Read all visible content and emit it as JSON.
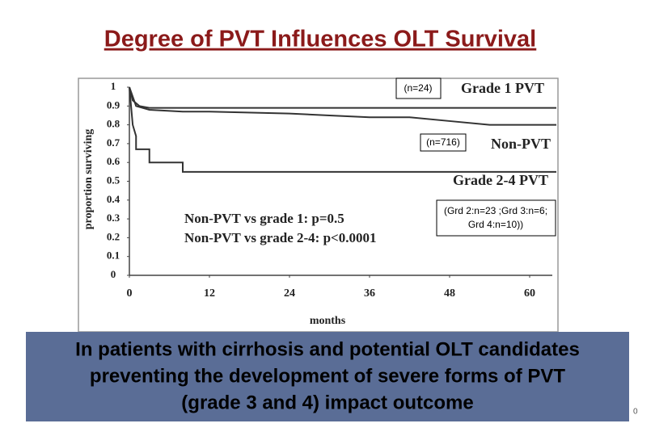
{
  "title": "Degree of PVT Influences OLT Survival",
  "chart_data": {
    "type": "line",
    "step": true,
    "ylabel": "proportion surviving",
    "xlabel": "months",
    "xlim": [
      0,
      64
    ],
    "xticks": [
      0,
      12,
      24,
      36,
      48,
      60
    ],
    "ylim": [
      0,
      1
    ],
    "yticks": [
      0,
      0.1,
      0.2,
      0.3,
      0.4,
      0.5,
      0.6,
      0.7,
      0.8,
      0.9,
      1
    ],
    "series": [
      {
        "name": "Grade 1 PVT",
        "color": "#333333",
        "annotation": "(n=24)",
        "x": [
          0,
          0.5,
          1.5,
          3,
          64
        ],
        "values": [
          1,
          0.93,
          0.9,
          0.89,
          0.89
        ]
      },
      {
        "name": "Non-PVT",
        "color": "#333333",
        "annotation": "(n=716)",
        "x": [
          0,
          1,
          3,
          8,
          12,
          24,
          30,
          36,
          42,
          48,
          54,
          60,
          64
        ],
        "values": [
          1,
          0.9,
          0.88,
          0.87,
          0.87,
          0.86,
          0.85,
          0.84,
          0.84,
          0.82,
          0.8,
          0.8,
          0.8
        ]
      },
      {
        "name": "Grade 2-4 PVT",
        "color": "#333333",
        "annotation": [
          "(Grd 2:n=23 ;Grd 3:n=6;",
          "Grd 4:n=10))"
        ],
        "x": [
          0,
          0.5,
          1,
          1,
          3,
          3,
          8,
          8,
          64
        ],
        "values": [
          1,
          0.8,
          0.74,
          0.67,
          0.67,
          0.6,
          0.6,
          0.55,
          0.55
        ]
      }
    ],
    "stats": [
      "Non-PVT vs grade 1: p=0.5",
      "Non-PVT vs grade 2-4: p<0.0001"
    ]
  },
  "conclusion": [
    "In patients with cirrhosis and potential OLT candidates",
    "preventing the development of severe forms of PVT",
    "(grade 3 and 4) impact outcome"
  ],
  "slide_number": "0"
}
